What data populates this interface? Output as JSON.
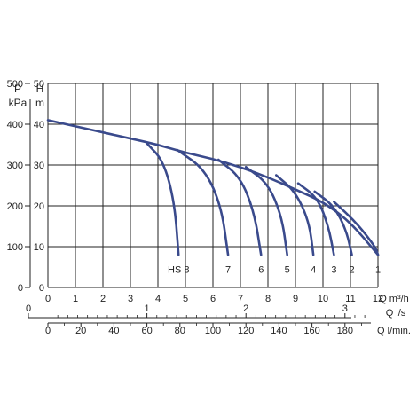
{
  "chart_data": {
    "type": "line",
    "left_axes": {
      "pressure": {
        "title_line1": "P",
        "title_line2": "kPa",
        "ticks": [
          "0",
          "100",
          "200",
          "300",
          "400",
          "500"
        ],
        "range": [
          0,
          500
        ]
      },
      "head": {
        "title_line1": "H",
        "title_line2": "m",
        "ticks": [
          "0",
          "10",
          "20",
          "30",
          "40",
          "50"
        ],
        "range": [
          0,
          50
        ]
      }
    },
    "bottom_axes": [
      {
        "label": "Q m³/h",
        "ticks": [
          "0",
          "1",
          "2",
          "3",
          "4",
          "5",
          "6",
          "7",
          "8",
          "9",
          "10",
          "11",
          "12"
        ],
        "range": [
          0,
          12
        ]
      },
      {
        "label": "Q l/s",
        "ticks": [
          "0",
          "1",
          "2",
          "3"
        ]
      },
      {
        "label": "Q l/min.",
        "ticks": [
          "0",
          "20",
          "40",
          "60",
          "80",
          "100",
          "120",
          "140",
          "160",
          "180"
        ]
      }
    ],
    "grid": true,
    "main_curve": {
      "x": [
        0,
        1,
        2,
        3,
        4,
        5,
        6,
        7,
        8,
        9,
        10,
        11,
        12
      ],
      "y": [
        41,
        39.5,
        38,
        36.5,
        35,
        33,
        31.5,
        29.5,
        27,
        24,
        21,
        16,
        8
      ]
    },
    "series": [
      {
        "name": "HS 8",
        "x": [
          3.6,
          4.2,
          4.6,
          4.75
        ],
        "y": [
          35.3,
          31,
          21,
          8
        ]
      },
      {
        "name": "7",
        "x": [
          4.7,
          5.7,
          6.3,
          6.55
        ],
        "y": [
          33.7,
          29,
          20,
          8
        ]
      },
      {
        "name": "6",
        "x": [
          6.2,
          7.0,
          7.5,
          7.75
        ],
        "y": [
          31.3,
          27,
          18.5,
          8
        ]
      },
      {
        "name": "5",
        "x": [
          7.2,
          8.0,
          8.5,
          8.7
        ],
        "y": [
          29.5,
          25.5,
          17.5,
          8
        ]
      },
      {
        "name": "4",
        "x": [
          8.3,
          9.0,
          9.5,
          9.65
        ],
        "y": [
          27.5,
          23.5,
          16,
          8
        ]
      },
      {
        "name": "3",
        "x": [
          9.1,
          9.8,
          10.2,
          10.4
        ],
        "y": [
          25.5,
          22,
          15,
          8
        ]
      },
      {
        "name": "2",
        "x": [
          9.7,
          10.4,
          10.85,
          11.05
        ],
        "y": [
          23.5,
          20,
          14,
          8
        ]
      },
      {
        "name": "1",
        "x": [
          10.4,
          11.2,
          11.9,
          12.0
        ],
        "y": [
          21,
          16,
          10,
          8
        ]
      }
    ],
    "line_color": "#3a4a8c"
  }
}
